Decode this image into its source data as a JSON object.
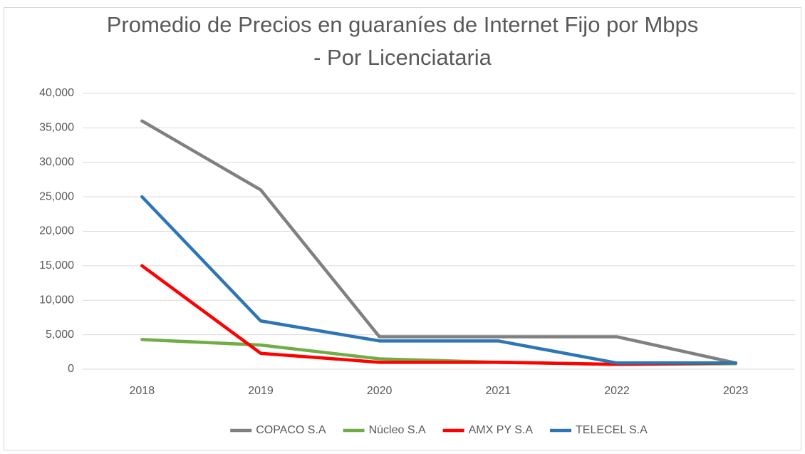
{
  "chart_data": {
    "type": "line",
    "title": "Promedio de Precios en guaraníes de Internet Fijo por Mbps - Por Licenciataria",
    "categories": [
      "2018",
      "2019",
      "2020",
      "2021",
      "2022",
      "2023"
    ],
    "series": [
      {
        "name": "COPACO S.A",
        "color": "#808080",
        "values": [
          36000,
          26000,
          4700,
          4700,
          4700,
          900
        ]
      },
      {
        "name": "Núcleo S.A",
        "color": "#70ad47",
        "values": [
          4300,
          3500,
          1500,
          1000,
          700,
          800
        ]
      },
      {
        "name": "AMX PY S.A",
        "color": "#ff0000",
        "values": [
          15000,
          2300,
          1000,
          1000,
          700,
          900
        ]
      },
      {
        "name": "TELECEL S.A",
        "color": "#2e75b6",
        "values": [
          25000,
          7000,
          4100,
          4100,
          900,
          900
        ]
      }
    ],
    "ylim": [
      0,
      40000
    ],
    "yticks": [
      0,
      {
        "value": 5000,
        "label": "5,000"
      },
      {
        "value": 10000,
        "label": "10,000"
      },
      {
        "value": 15000,
        "label": "15,000"
      },
      {
        "value": 20000,
        "label": "20,000"
      },
      {
        "value": 25000,
        "label": "25,000"
      },
      {
        "value": 30000,
        "label": "30,000"
      },
      {
        "value": 35000,
        "label": "35,000"
      },
      {
        "value": 40000,
        "label": "40,000"
      }
    ],
    "grid": true,
    "legend": "bottom"
  }
}
